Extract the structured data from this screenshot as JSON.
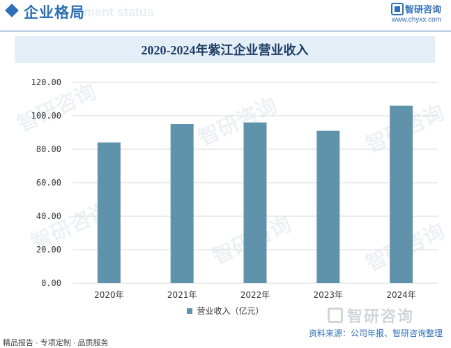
{
  "header": {
    "section_title": "企业格局",
    "ghost_text": "ment status",
    "brand_name": "智研咨询",
    "brand_url": "www.chyxx.com"
  },
  "chart_data": {
    "type": "bar",
    "title": "2020-2024年紫江企业营业收入",
    "categories": [
      "2020年",
      "2021年",
      "2022年",
      "2023年",
      "2024年"
    ],
    "series": [
      {
        "name": "营业收入（亿元）",
        "values": [
          84.0,
          95.0,
          96.0,
          91.0,
          106.0
        ],
        "color": "#5f93ab"
      }
    ],
    "ylim": [
      0,
      120
    ],
    "yticks": [
      "0.00",
      "20.00",
      "40.00",
      "60.00",
      "80.00",
      "100.00",
      "120.00"
    ],
    "grid": true,
    "legend_position": "bottom"
  },
  "watermark_text": "智研咨询",
  "bottom_logo_text": "智研咨询",
  "source": "资料来源：公司年报、智研咨询整理",
  "footer": "精品报告 · 专项定制 · 品质服务"
}
